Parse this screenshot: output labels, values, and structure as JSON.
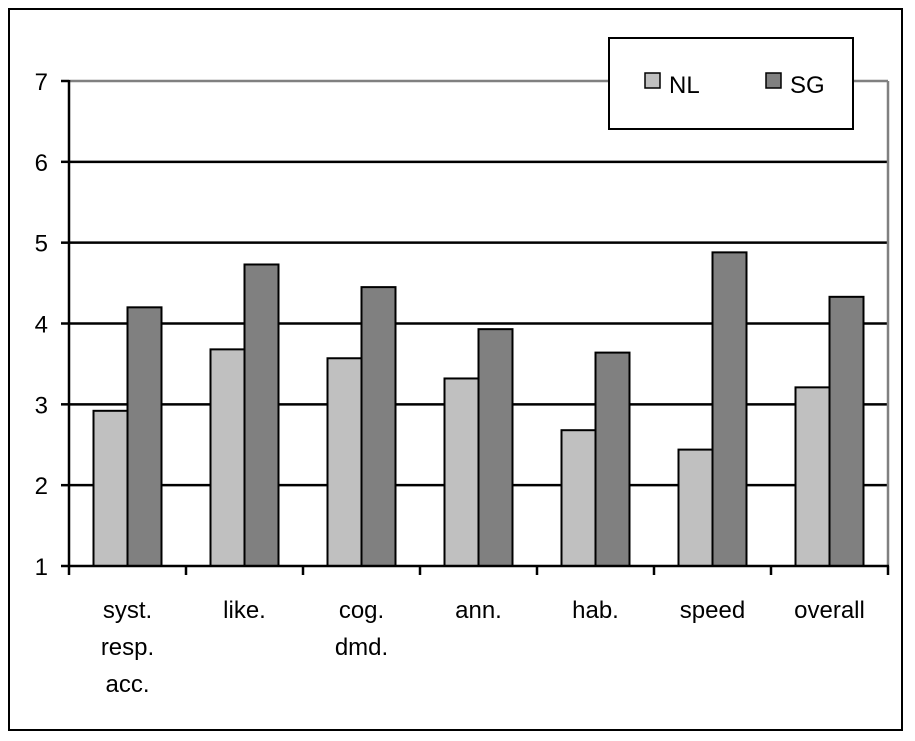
{
  "chart_data": {
    "type": "bar",
    "title": "",
    "xlabel": "",
    "ylabel": "",
    "categories": [
      [
        "syst.",
        "resp.",
        "acc."
      ],
      [
        "like."
      ],
      [
        "cog.",
        "dmd."
      ],
      [
        "ann."
      ],
      [
        "hab."
      ],
      [
        "speed"
      ],
      [
        "overall"
      ]
    ],
    "series": [
      {
        "name": "NL",
        "color": "#c0c0c0",
        "values": [
          2.92,
          3.68,
          3.57,
          3.32,
          2.68,
          2.44,
          3.21
        ]
      },
      {
        "name": "SG",
        "color": "#808080",
        "values": [
          4.2,
          4.73,
          4.45,
          3.93,
          3.64,
          4.88,
          4.33
        ]
      }
    ],
    "ylim": [
      1,
      7
    ],
    "yticks": [
      "1",
      "2",
      "3",
      "4",
      "5",
      "6",
      "7"
    ],
    "grid": true,
    "legend_position": "top-right"
  }
}
